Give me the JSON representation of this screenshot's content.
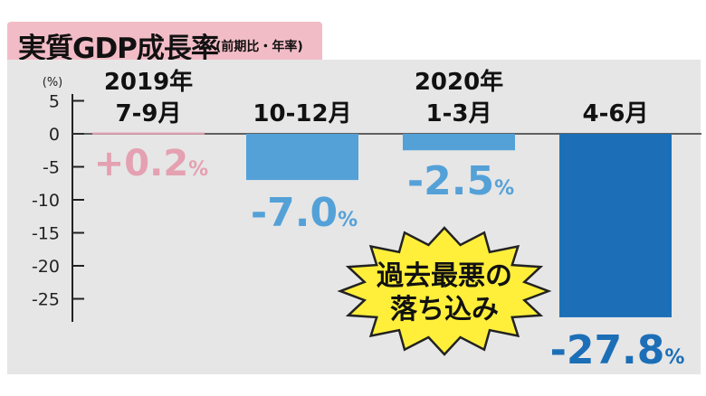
{
  "title": "実質GDP成長率",
  "subtitle": "(前期比・年率)",
  "y_unit": "(%)",
  "annotation": [
    "過去最悪の",
    "落ち込み"
  ],
  "colors": {
    "positive": "#e4a1b1",
    "light_blue": "#54a1d8",
    "dark_blue": "#1c6fb7",
    "title_tab": "#f2bcc7",
    "burst": "#ffef3a"
  },
  "chart_data": {
    "type": "bar",
    "categories": [
      {
        "year": "2019年",
        "period": "7-9月"
      },
      {
        "year": "",
        "period": "10-12月"
      },
      {
        "year": "2020年",
        "period": "1-3月"
      },
      {
        "year": "",
        "period": "4-6月"
      }
    ],
    "values": [
      0.2,
      -7.0,
      -2.5,
      -27.8
    ],
    "value_labels": [
      {
        "num": "+0.2",
        "unit": "%"
      },
      {
        "num": "-7.0",
        "unit": "%"
      },
      {
        "num": "-2.5",
        "unit": "%"
      },
      {
        "num": "-27.8",
        "unit": "%"
      }
    ],
    "ylim": [
      -28,
      5
    ],
    "yticks": [
      5,
      0,
      -5,
      -10,
      -15,
      -20,
      -25
    ],
    "ytick_labels": [
      "5",
      "0",
      "-5",
      "-10",
      "-15",
      "-20",
      "-25"
    ],
    "grid": false
  }
}
